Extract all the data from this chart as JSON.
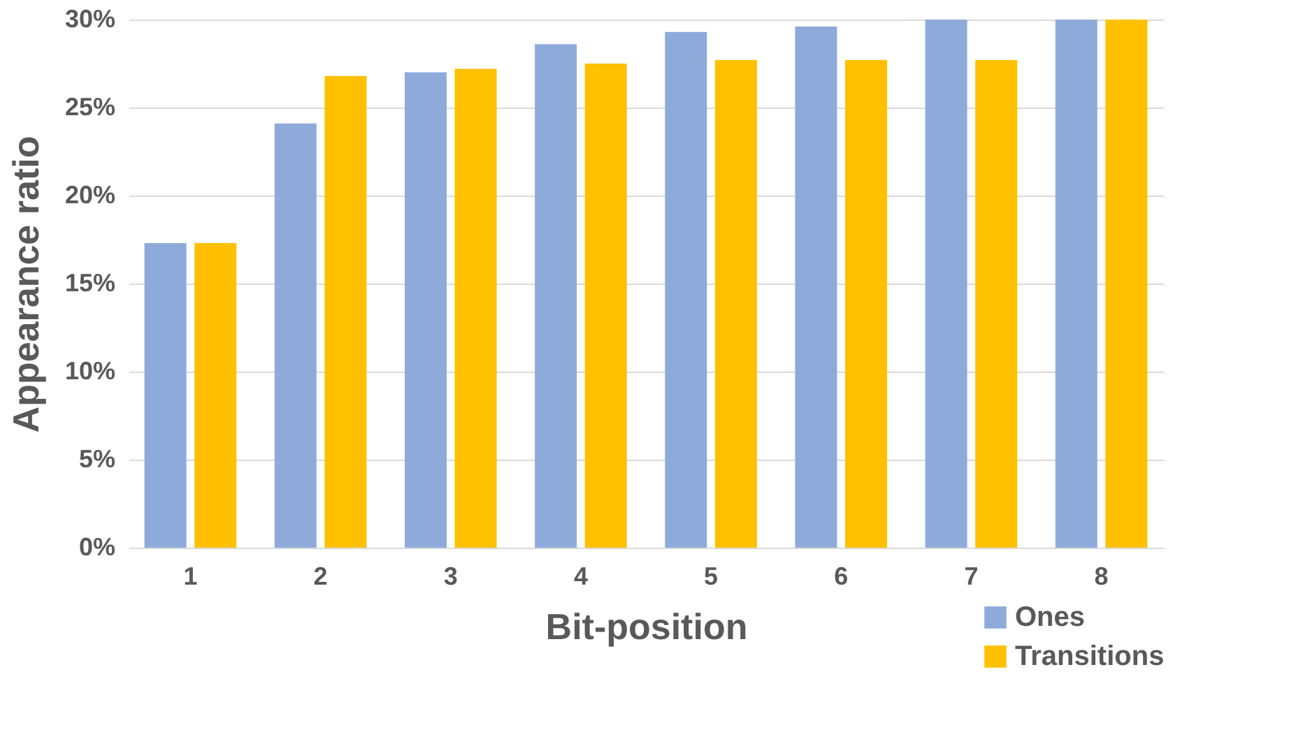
{
  "chart_data": {
    "type": "bar",
    "xlabel": "Bit-position",
    "ylabel": "Appearance ratio",
    "categories": [
      "1",
      "2",
      "3",
      "4",
      "5",
      "6",
      "7",
      "8"
    ],
    "series": [
      {
        "name": "Ones",
        "color": "#8eaadb",
        "values": [
          17.3,
          24.1,
          27.0,
          28.6,
          29.3,
          29.6,
          30.0,
          30.0
        ]
      },
      {
        "name": "Transitions",
        "color": "#ffc000",
        "values": [
          17.3,
          26.8,
          27.2,
          27.5,
          27.7,
          27.7,
          27.7,
          30.0
        ]
      }
    ],
    "ylim": [
      0,
      30
    ],
    "yticks": [
      {
        "value": 0,
        "label": "0%"
      },
      {
        "value": 5,
        "label": "5%"
      },
      {
        "value": 10,
        "label": "10%"
      },
      {
        "value": 15,
        "label": "15%"
      },
      {
        "value": 20,
        "label": "20%"
      },
      {
        "value": 25,
        "label": "25%"
      },
      {
        "value": 30,
        "label": "30%"
      }
    ],
    "grid": "y",
    "legend": "bottom right"
  }
}
